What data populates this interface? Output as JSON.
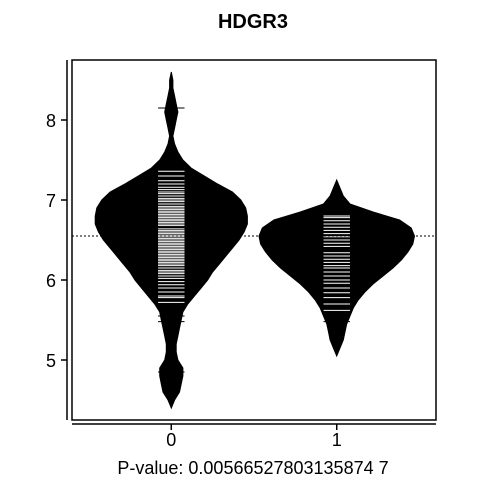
{
  "chart_data": {
    "type": "beanplot",
    "title": "HDGR3",
    "xlabel": "P-value: 0.00566527803135874 7",
    "ylabel": "",
    "x_categories": [
      "0",
      "1"
    ],
    "x_ticks": [
      "0",
      "1"
    ],
    "y_ticks": [
      5,
      6,
      7,
      8
    ],
    "ylim": [
      4.25,
      8.75
    ],
    "xlim": [
      -0.6,
      1.6
    ],
    "overall_mean": 6.55,
    "groups": [
      {
        "name": "0",
        "mean": 6.66,
        "density": [
          [
            4.4,
            0.0
          ],
          [
            4.5,
            0.02
          ],
          [
            4.6,
            0.05
          ],
          [
            4.7,
            0.06
          ],
          [
            4.8,
            0.07
          ],
          [
            4.9,
            0.07
          ],
          [
            5.0,
            0.04
          ],
          [
            5.1,
            0.03
          ],
          [
            5.2,
            0.03
          ],
          [
            5.3,
            0.04
          ],
          [
            5.4,
            0.05
          ],
          [
            5.5,
            0.06
          ],
          [
            5.6,
            0.07
          ],
          [
            5.7,
            0.1
          ],
          [
            5.8,
            0.14
          ],
          [
            5.9,
            0.18
          ],
          [
            6.0,
            0.22
          ],
          [
            6.1,
            0.25
          ],
          [
            6.2,
            0.29
          ],
          [
            6.3,
            0.33
          ],
          [
            6.4,
            0.37
          ],
          [
            6.5,
            0.41
          ],
          [
            6.6,
            0.44
          ],
          [
            6.7,
            0.46
          ],
          [
            6.8,
            0.46
          ],
          [
            6.9,
            0.45
          ],
          [
            7.0,
            0.42
          ],
          [
            7.1,
            0.37
          ],
          [
            7.2,
            0.28
          ],
          [
            7.3,
            0.2
          ],
          [
            7.4,
            0.12
          ],
          [
            7.5,
            0.07
          ],
          [
            7.6,
            0.04
          ],
          [
            7.7,
            0.02
          ],
          [
            7.8,
            0.01
          ],
          [
            7.9,
            0.02
          ],
          [
            8.0,
            0.03
          ],
          [
            8.1,
            0.04
          ],
          [
            8.2,
            0.03
          ],
          [
            8.3,
            0.02
          ],
          [
            8.4,
            0.01
          ],
          [
            8.5,
            0.01
          ],
          [
            8.6,
            0.0
          ]
        ],
        "observations": [
          4.85,
          5.48,
          5.55,
          5.72,
          5.78,
          5.8,
          5.85,
          5.9,
          5.94,
          5.98,
          6.02,
          6.05,
          6.08,
          6.1,
          6.12,
          6.15,
          6.18,
          6.2,
          6.22,
          6.24,
          6.26,
          6.28,
          6.3,
          6.32,
          6.34,
          6.36,
          6.38,
          6.4,
          6.42,
          6.44,
          6.46,
          6.48,
          6.5,
          6.52,
          6.54,
          6.56,
          6.58,
          6.6,
          6.62,
          6.64,
          6.66,
          6.68,
          6.7,
          6.72,
          6.74,
          6.76,
          6.78,
          6.8,
          6.82,
          6.84,
          6.86,
          6.88,
          6.9,
          6.92,
          6.95,
          6.98,
          7.0,
          7.02,
          7.05,
          7.08,
          7.1,
          7.13,
          7.16,
          7.2,
          7.24,
          7.3,
          7.36,
          8.15
        ]
      },
      {
        "name": "1",
        "mean": 6.38,
        "density": [
          [
            5.05,
            0.0
          ],
          [
            5.15,
            0.02
          ],
          [
            5.25,
            0.04
          ],
          [
            5.35,
            0.05
          ],
          [
            5.45,
            0.06
          ],
          [
            5.55,
            0.08
          ],
          [
            5.65,
            0.1
          ],
          [
            5.75,
            0.13
          ],
          [
            5.85,
            0.17
          ],
          [
            5.95,
            0.22
          ],
          [
            6.05,
            0.28
          ],
          [
            6.15,
            0.34
          ],
          [
            6.25,
            0.39
          ],
          [
            6.35,
            0.43
          ],
          [
            6.45,
            0.46
          ],
          [
            6.55,
            0.47
          ],
          [
            6.65,
            0.45
          ],
          [
            6.75,
            0.38
          ],
          [
            6.85,
            0.22
          ],
          [
            6.95,
            0.08
          ],
          [
            7.05,
            0.04
          ],
          [
            7.15,
            0.02
          ],
          [
            7.25,
            0.0
          ]
        ],
        "observations": [
          5.48,
          5.55,
          5.62,
          5.7,
          5.78,
          5.84,
          5.9,
          5.96,
          6.0,
          6.05,
          6.1,
          6.15,
          6.18,
          6.22,
          6.26,
          6.3,
          6.34,
          6.38,
          6.42,
          6.46,
          6.5,
          6.54,
          6.58,
          6.62,
          6.66,
          6.7,
          6.74,
          6.78,
          6.8
        ]
      }
    ]
  }
}
